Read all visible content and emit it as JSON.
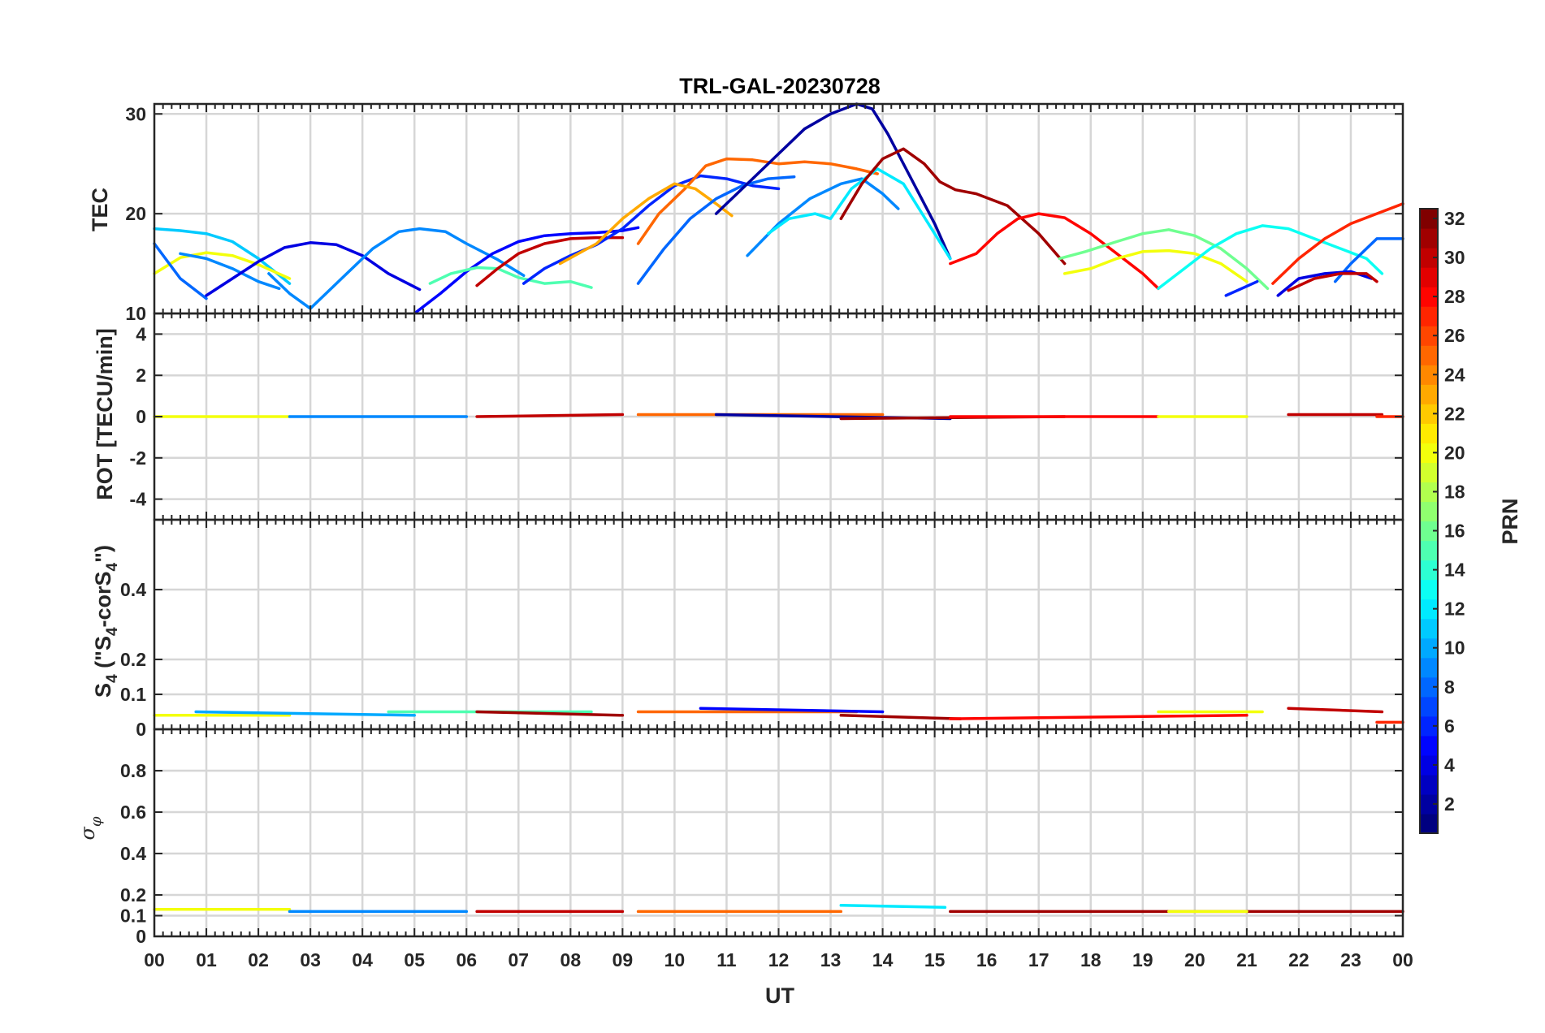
{
  "figure": {
    "title": "TRL-GAL-20230728",
    "xlabel": "UT"
  },
  "x_tick_labels": [
    "00",
    "01",
    "02",
    "03",
    "04",
    "05",
    "06",
    "07",
    "08",
    "09",
    "10",
    "11",
    "12",
    "13",
    "14",
    "15",
    "16",
    "17",
    "18",
    "19",
    "20",
    "21",
    "22",
    "23",
    "00"
  ],
  "colorbar": {
    "label": "PRN",
    "min": 1,
    "max": 32,
    "tick_labels": [
      "2",
      "4",
      "6",
      "8",
      "10",
      "12",
      "14",
      "16",
      "18",
      "20",
      "22",
      "24",
      "26",
      "28",
      "30",
      "32"
    ],
    "colormap": "jet"
  },
  "chart_data": [
    {
      "type": "line",
      "panel": "tec",
      "ylabel": "TEC",
      "xlim": [
        0,
        24
      ],
      "ylim": [
        10,
        31
      ],
      "yticks": [
        10,
        20,
        30
      ],
      "ytick_labels": [
        "10",
        "20",
        "30"
      ],
      "series": [
        {
          "prn": 11,
          "x": [
            0,
            0.5,
            1,
            1.5,
            2,
            2.6
          ],
          "y": [
            18.5,
            18.3,
            18.0,
            17.2,
            15.5,
            13.0
          ]
        },
        {
          "prn": 20,
          "x": [
            0,
            0.5,
            1,
            1.5,
            2,
            2.6
          ],
          "y": [
            14.0,
            15.6,
            16.1,
            15.8,
            14.9,
            13.5
          ]
        },
        {
          "prn": 8,
          "x": [
            0,
            0.5,
            1.0
          ],
          "y": [
            17.0,
            13.5,
            11.5
          ]
        },
        {
          "prn": 9,
          "x": [
            0.5,
            1,
            1.5,
            2,
            2.4
          ],
          "y": [
            16.0,
            15.5,
            14.5,
            13.2,
            12.5
          ]
        },
        {
          "prn": 4,
          "x": [
            1,
            1.5,
            2,
            2.5,
            3,
            3.5,
            4,
            4.5,
            5.1
          ],
          "y": [
            11.8,
            13.5,
            15.2,
            16.6,
            17.1,
            16.9,
            15.8,
            14.0,
            12.4
          ]
        },
        {
          "prn": 9,
          "x": [
            2.2,
            2.6,
            3.0,
            3.6,
            4.2,
            4.7,
            5.1,
            5.6,
            6.0,
            6.6,
            7.1
          ],
          "y": [
            14.0,
            12.0,
            10.5,
            13.5,
            16.5,
            18.2,
            18.5,
            18.2,
            17.0,
            15.4,
            13.8
          ]
        },
        {
          "prn": 5,
          "x": [
            5.0,
            5.5,
            6.0,
            6.5,
            7.0,
            7.5,
            8.0,
            8.5,
            9.0,
            9.3
          ],
          "y": [
            10.0,
            12.0,
            14.2,
            16.0,
            17.2,
            17.8,
            18.0,
            18.1,
            18.3,
            18.6
          ]
        },
        {
          "prn": 15,
          "x": [
            5.3,
            5.7,
            6.2,
            6.6,
            7.0,
            7.5,
            8.0,
            8.4
          ],
          "y": [
            13.0,
            14.0,
            14.6,
            14.5,
            13.6,
            13.0,
            13.2,
            12.6
          ]
        },
        {
          "prn": 30,
          "x": [
            6.2,
            6.6,
            7.0,
            7.5,
            8.0,
            8.5,
            9.0
          ],
          "y": [
            12.8,
            14.5,
            16.0,
            17.0,
            17.5,
            17.6,
            17.6
          ]
        },
        {
          "prn": 6,
          "x": [
            7.1,
            7.5,
            8.0,
            8.5,
            9.0,
            9.5,
            10.0,
            10.5,
            11.0,
            11.5,
            12.0
          ],
          "y": [
            13.0,
            14.5,
            15.8,
            16.9,
            18.5,
            20.8,
            22.8,
            23.8,
            23.5,
            22.8,
            22.5
          ]
        },
        {
          "prn": 25,
          "x": [
            9.3,
            9.7,
            10.2,
            10.6,
            11.0,
            11.5,
            12.0,
            12.5,
            13.0,
            13.5,
            13.9
          ],
          "y": [
            17.0,
            20.0,
            22.5,
            24.8,
            25.5,
            25.4,
            25.0,
            25.2,
            25.0,
            24.5,
            24.0
          ]
        },
        {
          "prn": 23,
          "x": [
            7.8,
            8.5,
            9.0,
            9.5,
            10.0,
            10.4,
            10.8,
            11.1
          ],
          "y": [
            15.0,
            17.0,
            19.5,
            21.5,
            23.0,
            22.5,
            21.0,
            19.8
          ]
        },
        {
          "prn": 8,
          "x": [
            9.3,
            9.8,
            10.3,
            10.8,
            11.3,
            11.8,
            12.3
          ],
          "y": [
            13.0,
            16.5,
            19.5,
            21.5,
            22.8,
            23.5,
            23.7
          ]
        },
        {
          "prn": 2,
          "x": [
            10.8,
            11.5,
            12.0,
            12.5,
            13.0,
            13.5,
            13.8,
            14.1,
            14.5,
            15.0,
            15.3
          ],
          "y": [
            20.0,
            23.5,
            26.0,
            28.5,
            30.0,
            31.0,
            30.5,
            28.0,
            24.0,
            19.0,
            15.5
          ]
        },
        {
          "prn": 9,
          "x": [
            11.4,
            12.0,
            12.6,
            13.2,
            13.6,
            14.0,
            14.3
          ],
          "y": [
            15.8,
            19.0,
            21.5,
            23.0,
            23.5,
            22.0,
            20.5
          ]
        },
        {
          "prn": 12,
          "x": [
            11.8,
            12.2,
            12.7,
            13.0,
            13.4,
            13.9,
            14.4,
            15.0,
            15.3
          ],
          "y": [
            18.0,
            19.5,
            20.0,
            19.5,
            22.5,
            24.5,
            23.0,
            18.0,
            15.5
          ]
        },
        {
          "prn": 31,
          "x": [
            13.2,
            13.6,
            14.0,
            14.4,
            14.8,
            15.1,
            15.4,
            15.8,
            16.4,
            17.0,
            17.5
          ],
          "y": [
            19.5,
            23.0,
            25.5,
            26.5,
            25.0,
            23.2,
            22.4,
            22.0,
            20.8,
            18.0,
            15.0
          ]
        },
        {
          "prn": 28,
          "x": [
            15.3,
            15.8,
            16.2,
            16.6,
            17.0,
            17.5,
            18.0,
            18.5,
            19.0,
            19.3
          ],
          "y": [
            15.0,
            16.0,
            18.0,
            19.5,
            20.0,
            19.6,
            18.0,
            16.0,
            14.0,
            12.5
          ]
        },
        {
          "prn": 16,
          "x": [
            17.4,
            17.9,
            18.5,
            19.0,
            19.5,
            20.0,
            20.5,
            21.0,
            21.4
          ],
          "y": [
            15.5,
            16.2,
            17.2,
            18.0,
            18.4,
            17.8,
            16.5,
            14.5,
            12.5
          ]
        },
        {
          "prn": 20,
          "x": [
            17.5,
            18.0,
            18.5,
            19.0,
            19.5,
            20.0,
            20.5,
            21.0
          ],
          "y": [
            14.0,
            14.5,
            15.5,
            16.2,
            16.3,
            16.0,
            15.0,
            13.2
          ]
        },
        {
          "prn": 13,
          "x": [
            19.3,
            19.8,
            20.3,
            20.8,
            21.3,
            21.8,
            22.3,
            22.8,
            23.3,
            23.6
          ],
          "y": [
            12.5,
            14.5,
            16.5,
            18.0,
            18.8,
            18.5,
            17.5,
            16.5,
            15.5,
            14.0
          ]
        },
        {
          "prn": 27,
          "x": [
            21.5,
            22.0,
            22.5,
            23.0,
            23.5,
            24.0
          ],
          "y": [
            13.0,
            15.5,
            17.5,
            19.0,
            20.0,
            21.0
          ]
        },
        {
          "prn": 8,
          "x": [
            22.7,
            23.0,
            23.5,
            24.0
          ],
          "y": [
            13.2,
            15.0,
            17.5,
            17.5
          ]
        },
        {
          "prn": 4,
          "x": [
            21.6,
            22.0,
            22.5,
            23.0,
            23.4
          ],
          "y": [
            11.8,
            13.5,
            14.0,
            14.2,
            13.5
          ]
        },
        {
          "prn": 30,
          "x": [
            21.8,
            22.3,
            22.8,
            23.3,
            23.5
          ],
          "y": [
            12.3,
            13.5,
            14.0,
            14.0,
            13.2
          ]
        },
        {
          "prn": 6,
          "x": [
            20.6,
            20.9,
            21.2
          ],
          "y": [
            11.8,
            12.5,
            13.2
          ]
        }
      ]
    },
    {
      "type": "line",
      "panel": "rot",
      "ylabel": "ROT [TECU/min]",
      "xlim": [
        0,
        24
      ],
      "ylim": [
        -5,
        5
      ],
      "yticks": [
        -4,
        -2,
        0,
        2,
        4
      ],
      "ytick_labels": [
        "-4",
        "-2",
        "0",
        "2",
        "4"
      ],
      "series": [
        {
          "prn": 20,
          "x": [
            0,
            2.6
          ],
          "y": [
            0.0,
            0.0
          ]
        },
        {
          "prn": 9,
          "x": [
            2.6,
            6.0
          ],
          "y": [
            0.0,
            0.0
          ]
        },
        {
          "prn": 30,
          "x": [
            6.2,
            9.0
          ],
          "y": [
            0.0,
            0.1
          ]
        },
        {
          "prn": 25,
          "x": [
            9.3,
            14.0
          ],
          "y": [
            0.1,
            0.1
          ]
        },
        {
          "prn": 2,
          "x": [
            10.8,
            15.3
          ],
          "y": [
            0.1,
            -0.1
          ]
        },
        {
          "prn": 31,
          "x": [
            13.2,
            17.5
          ],
          "y": [
            -0.1,
            0.0
          ]
        },
        {
          "prn": 28,
          "x": [
            15.3,
            19.3
          ],
          "y": [
            0.0,
            0.0
          ]
        },
        {
          "prn": 20,
          "x": [
            19.3,
            21.0
          ],
          "y": [
            0.0,
            0.0
          ]
        },
        {
          "prn": 30,
          "x": [
            21.8,
            23.6
          ],
          "y": [
            0.1,
            0.1
          ]
        },
        {
          "prn": 27,
          "x": [
            23.5,
            24.0
          ],
          "y": [
            0.0,
            0.0
          ]
        }
      ]
    },
    {
      "type": "line",
      "panel": "s4",
      "ylabel": "S4 (\"S4-corS4\")",
      "xlim": [
        0,
        24
      ],
      "ylim": [
        0,
        0.6
      ],
      "yticks": [
        0,
        0.1,
        0.2,
        0.4
      ],
      "ytick_labels": [
        "0",
        "0.1",
        "0.2",
        "0.4"
      ],
      "series": [
        {
          "prn": 20,
          "x": [
            0,
            2.6
          ],
          "y": [
            0.04,
            0.04
          ]
        },
        {
          "prn": 10,
          "x": [
            0.8,
            5.0
          ],
          "y": [
            0.05,
            0.04
          ]
        },
        {
          "prn": 15,
          "x": [
            4.5,
            8.4
          ],
          "y": [
            0.05,
            0.05
          ]
        },
        {
          "prn": 31,
          "x": [
            6.2,
            9.0
          ],
          "y": [
            0.05,
            0.04
          ]
        },
        {
          "prn": 25,
          "x": [
            9.3,
            13.5
          ],
          "y": [
            0.05,
            0.05
          ]
        },
        {
          "prn": 5,
          "x": [
            10.5,
            14.0
          ],
          "y": [
            0.06,
            0.05
          ]
        },
        {
          "prn": 31,
          "x": [
            13.2,
            15.5
          ],
          "y": [
            0.04,
            0.03
          ]
        },
        {
          "prn": 28,
          "x": [
            15.3,
            21.0
          ],
          "y": [
            0.03,
            0.04
          ]
        },
        {
          "prn": 20,
          "x": [
            19.3,
            21.3
          ],
          "y": [
            0.05,
            0.05
          ]
        },
        {
          "prn": 30,
          "x": [
            21.8,
            23.6
          ],
          "y": [
            0.06,
            0.05
          ]
        },
        {
          "prn": 27,
          "x": [
            23.5,
            24.0
          ],
          "y": [
            0.02,
            0.02
          ]
        }
      ]
    },
    {
      "type": "line",
      "panel": "sigma_phi",
      "ylabel": "σφ",
      "xlim": [
        0,
        24
      ],
      "ylim": [
        0,
        1
      ],
      "yticks": [
        0,
        0.1,
        0.2,
        0.4,
        0.6,
        0.8
      ],
      "ytick_labels": [
        "0",
        "0.1",
        "0.2",
        "0.4",
        "0.6",
        "0.8"
      ],
      "series": [
        {
          "prn": 20,
          "x": [
            0,
            2.6
          ],
          "y": [
            0.13,
            0.13
          ]
        },
        {
          "prn": 9,
          "x": [
            2.6,
            6.0
          ],
          "y": [
            0.12,
            0.12
          ]
        },
        {
          "prn": 30,
          "x": [
            6.2,
            9.0
          ],
          "y": [
            0.12,
            0.12
          ]
        },
        {
          "prn": 25,
          "x": [
            9.3,
            13.2
          ],
          "y": [
            0.12,
            0.12
          ]
        },
        {
          "prn": 12,
          "x": [
            13.2,
            15.2
          ],
          "y": [
            0.15,
            0.14
          ]
        },
        {
          "prn": 31,
          "x": [
            15.3,
            24.0
          ],
          "y": [
            0.12,
            0.12
          ]
        },
        {
          "prn": 20,
          "x": [
            19.5,
            21.0
          ],
          "y": [
            0.12,
            0.12
          ]
        }
      ]
    }
  ]
}
